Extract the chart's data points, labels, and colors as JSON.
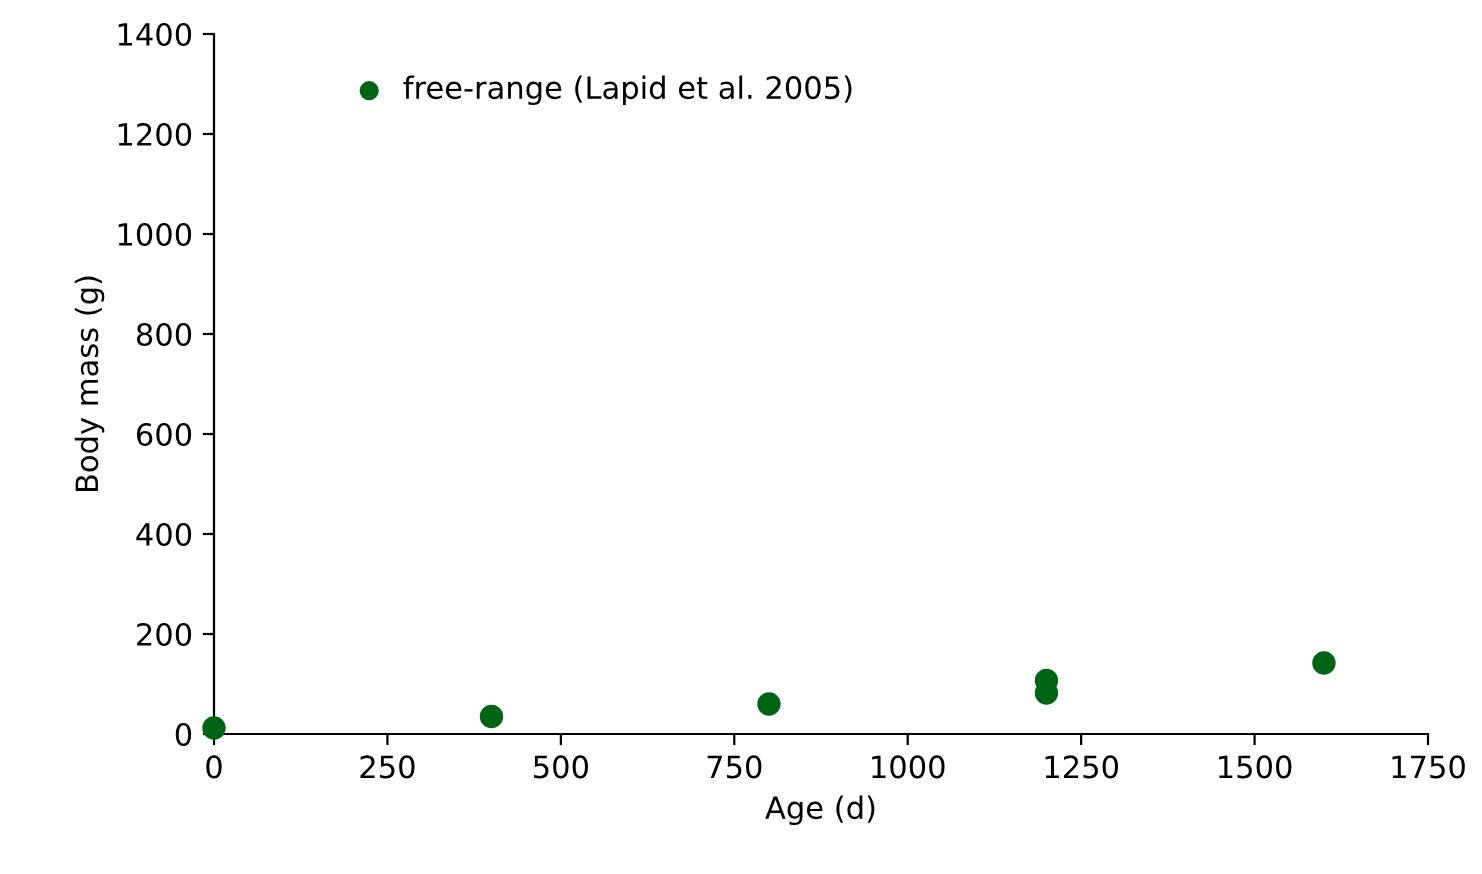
{
  "chart_data": {
    "type": "scatter",
    "xlabel": "Age (d)",
    "ylabel": "Body mass (g)",
    "series": [
      {
        "name": "free-range (Lapid et al. 2005)",
        "color": "#006414",
        "x": [
          0,
          400,
          800,
          1200,
          1200,
          1600
        ],
        "values": [
          12,
          35,
          60,
          82,
          107,
          142
        ]
      }
    ],
    "xlim": [
      0,
      1750
    ],
    "xticks": [
      0,
      250,
      500,
      750,
      1000,
      1250,
      1500,
      1750
    ],
    "ylim": [
      0,
      1400
    ],
    "yticks": [
      0,
      200,
      400,
      600,
      800,
      1000,
      1200,
      1400
    ],
    "grid": false,
    "legend": "top left",
    "marker": "circle"
  }
}
